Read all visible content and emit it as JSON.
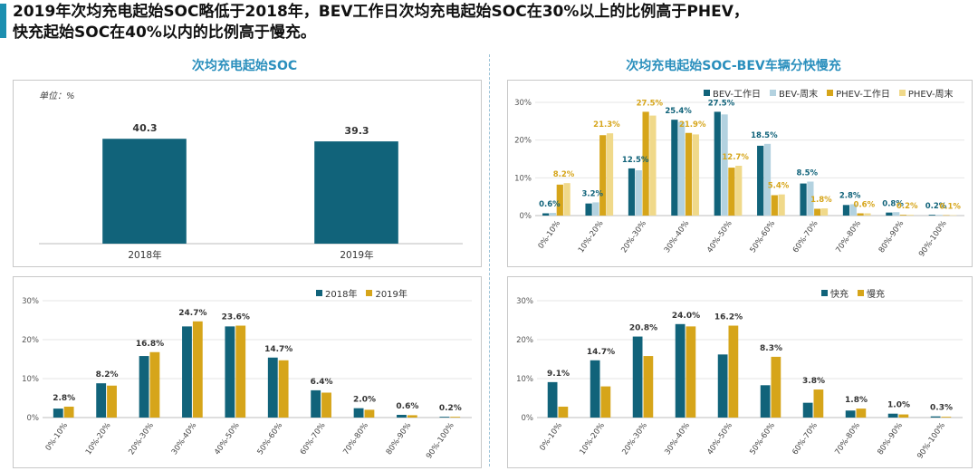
{
  "headline": {
    "line1": "2019年次均充电起始SOC略低于2018年，BEV工作日次均充电起始SOC在30%以上的比例高于PHEV，",
    "line2": "快充起始SOC在40%以内的比例高于慢充。"
  },
  "left_title": "次均充电起始SOC",
  "right_title": "次均充电起始SOC-BEV车辆分快慢充",
  "unit_label": "单位：%",
  "colors": {
    "teal": "#11637a",
    "gold": "#d6a51a",
    "lightblue": "#b3d2e0",
    "lightgold": "#f0d98a",
    "accent": "#1c8fb0"
  },
  "chart_data": [
    {
      "id": "c1",
      "type": "bar",
      "categories": [
        "2018年",
        "2019年"
      ],
      "series": [
        {
          "values": [
            40.3,
            39.3
          ],
          "labels": [
            "40.3",
            "39.3"
          ],
          "color": "#11637a"
        }
      ],
      "ylim": [
        0,
        55
      ],
      "grid": false
    },
    {
      "id": "c2",
      "type": "bar",
      "categories": [
        "0%-10%",
        "10%-20%",
        "20%-30%",
        "30%-40%",
        "40%-50%",
        "50%-60%",
        "60%-70%",
        "70%-80%",
        "80%-90%",
        "90%-100%"
      ],
      "series": [
        {
          "name": "BEV-工作日",
          "values": [
            0.6,
            3.2,
            12.5,
            25.4,
            27.5,
            18.5,
            8.5,
            2.8,
            0.8,
            0.2
          ],
          "labels": [
            "0.6%",
            "3.2%",
            "12.5%",
            "25.4%",
            "27.5%",
            "18.5%",
            "8.5%",
            "2.8%",
            "0.8%",
            "0.2%"
          ],
          "color": "#11637a",
          "label_color": "#11637a"
        },
        {
          "name": "BEV-周末",
          "values": [
            0.7,
            3.5,
            12.0,
            24.8,
            26.8,
            19.0,
            9.0,
            3.0,
            0.9,
            0.2
          ],
          "color": "#b3d2e0"
        },
        {
          "name": "PHEV-工作日",
          "values": [
            8.2,
            21.3,
            27.5,
            21.9,
            12.7,
            5.4,
            1.8,
            0.6,
            0.2,
            0.1
          ],
          "labels": [
            "8.2%",
            "21.3%",
            "27.5%",
            "21.9%",
            "12.7%",
            "5.4%",
            "1.8%",
            "0.6%",
            "0.2%",
            "0.1%"
          ],
          "color": "#d6a51a",
          "label_color": "#d6a51a"
        },
        {
          "name": "PHEV-周末",
          "values": [
            8.6,
            21.8,
            26.5,
            21.5,
            13.2,
            5.6,
            1.9,
            0.6,
            0.2,
            0.1
          ],
          "color": "#f0d98a"
        }
      ],
      "ylim": [
        0,
        30
      ],
      "yticks": [
        "0%",
        "10%",
        "20%",
        "30%"
      ],
      "grid": true,
      "legend": "top-right"
    },
    {
      "id": "c3",
      "type": "bar",
      "categories": [
        "0%-10%",
        "10%-20%",
        "20%-30%",
        "30%-40%",
        "40%-50%",
        "50%-60%",
        "60%-70%",
        "70%-80%",
        "80%-90%",
        "90%-100%"
      ],
      "series": [
        {
          "name": "2018年",
          "values": [
            2.3,
            8.8,
            15.8,
            23.4,
            23.4,
            15.4,
            7.0,
            2.4,
            0.7,
            0.2
          ],
          "color": "#11637a"
        },
        {
          "name": "2019年",
          "values": [
            2.8,
            8.2,
            16.8,
            24.7,
            23.6,
            14.7,
            6.4,
            2.0,
            0.6,
            0.2
          ],
          "labels": [
            "2.8%",
            "8.2%",
            "16.8%",
            "24.7%",
            "23.6%",
            "14.7%",
            "6.4%",
            "2.0%",
            "0.6%",
            "0.2%"
          ],
          "color": "#d6a51a",
          "label_color": "#333333"
        }
      ],
      "ylim": [
        0,
        30
      ],
      "yticks": [
        "0%",
        "10%",
        "20%",
        "30%"
      ],
      "grid": true,
      "legend": "top-right"
    },
    {
      "id": "c4",
      "type": "bar",
      "categories": [
        "0%-10%",
        "10%-20%",
        "20%-30%",
        "30%-40%",
        "40%-50%",
        "50%-60%",
        "60%-70%",
        "70%-80%",
        "80%-90%",
        "90%-100%"
      ],
      "series": [
        {
          "name": "快充",
          "values": [
            9.1,
            14.7,
            20.8,
            24.0,
            16.2,
            8.3,
            3.8,
            1.8,
            1.0,
            0.3
          ],
          "labels": [
            "9.1%",
            "14.7%",
            "20.8%",
            "24.0%",
            "16.2%",
            "8.3%",
            "3.8%",
            "1.8%",
            "1.0%",
            "0.3%"
          ],
          "color": "#11637a",
          "label_color": "#333333"
        },
        {
          "name": "慢充",
          "values": [
            2.8,
            8.0,
            15.8,
            23.4,
            23.6,
            15.6,
            7.2,
            2.3,
            0.8,
            0.2
          ],
          "color": "#d6a51a"
        }
      ],
      "ylim": [
        0,
        30
      ],
      "yticks": [
        "0%",
        "10%",
        "20%",
        "30%"
      ],
      "grid": true,
      "legend": "top-right"
    }
  ]
}
